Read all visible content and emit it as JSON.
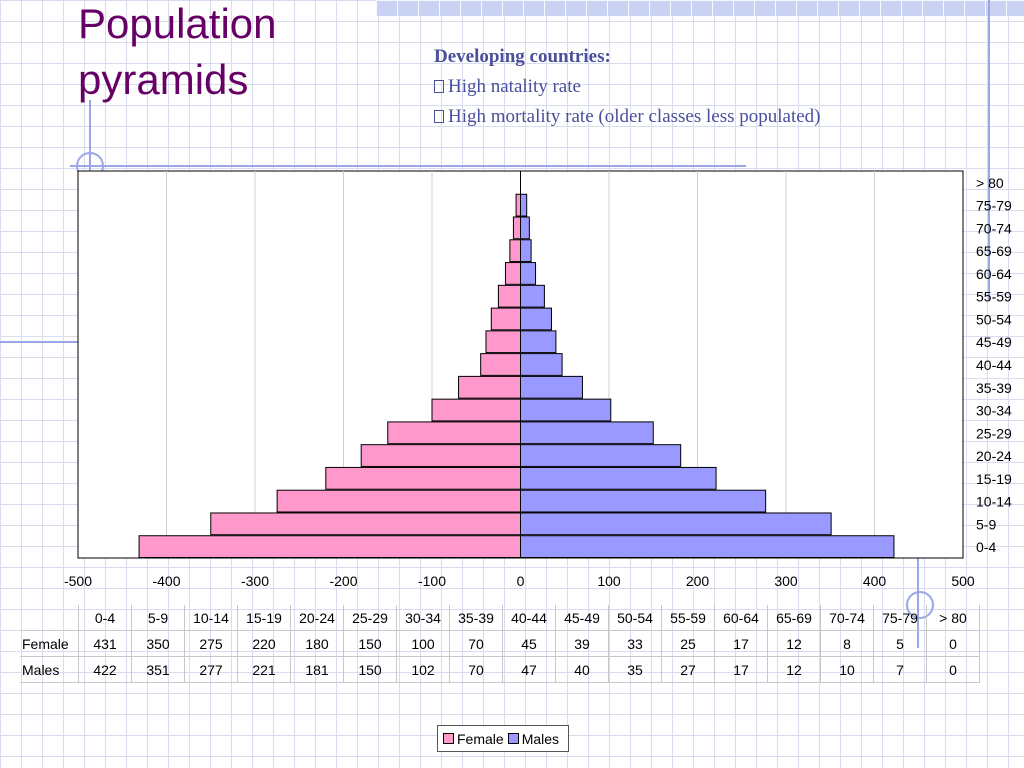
{
  "slide": {
    "title_line1": "Population",
    "title_line2": "pyramids",
    "notes_heading": "Developing countries:",
    "bullets": [
      "High natality rate",
      "High mortality rate (older classes less populated)"
    ]
  },
  "colors": {
    "female": "#ff99cc",
    "males": "#9999ff",
    "title": "#660066",
    "notes": "#4a4f9a"
  },
  "chart_data": {
    "type": "bar",
    "orientation": "horizontal",
    "categories": [
      "0-4",
      "5-9",
      "10-14",
      "15-19",
      "20-24",
      "25-29",
      "30-34",
      "35-39",
      "40-44",
      "45-49",
      "50-54",
      "55-59",
      "60-64",
      "65-69",
      "70-74",
      "75-79",
      "> 80"
    ],
    "series": [
      {
        "name": "Female",
        "values": [
          431,
          350,
          275,
          220,
          180,
          150,
          100,
          70,
          45,
          39,
          33,
          25,
          17,
          12,
          8,
          5,
          0
        ],
        "plotted_as": "negative"
      },
      {
        "name": "Males",
        "values": [
          422,
          351,
          277,
          221,
          181,
          150,
          102,
          70,
          47,
          40,
          35,
          27,
          17,
          12,
          10,
          7,
          0
        ]
      }
    ],
    "xlim": [
      -500,
      500
    ],
    "x_ticks": [
      "-500",
      "-400",
      "-300",
      "-200",
      "-100",
      "0",
      "100",
      "200",
      "300",
      "400",
      "500"
    ],
    "grid": "vertical",
    "legend_position": "bottom",
    "data_table": true
  }
}
